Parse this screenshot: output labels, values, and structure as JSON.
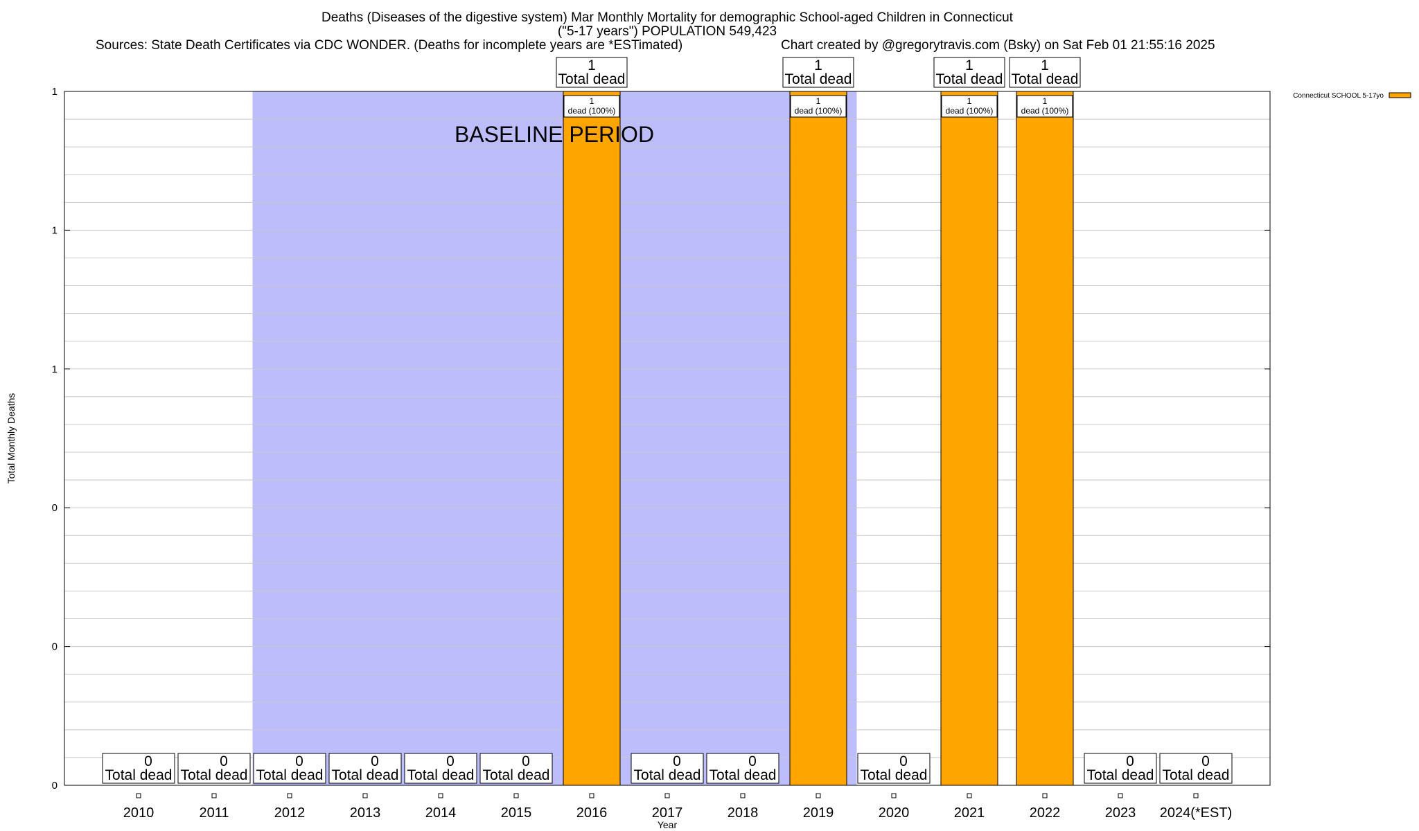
{
  "colors": {
    "bar": "#FFA500",
    "baseline_shade": "#BDBDFC",
    "grid": "#c8c8c8",
    "frame": "#000000"
  },
  "chart_data": {
    "type": "bar",
    "title": "Deaths (Diseases of the digestive system) Mar Monthly Mortality for demographic School-aged Children in Connecticut",
    "subtitle": "(\"5-17 years\") POPULATION 549,423",
    "sources": "Sources: State Death Certificates via CDC WONDER. (Deaths for incomplete years are *ESTimated)",
    "credit": "Chart created by @gregorytravis.com (Bsky) on Sat Feb 01 21:55:16 2025",
    "xlabel": "Year",
    "ylabel": "Total Monthly Deaths",
    "categories": [
      "2010",
      "2011",
      "2012",
      "2013",
      "2014",
      "2015",
      "2016",
      "2017",
      "2018",
      "2019",
      "2020",
      "2021",
      "2022",
      "2023",
      "2024(*EST)"
    ],
    "series": [
      {
        "name": "Connecticut SCHOOL 5-17yo",
        "values": [
          0,
          0,
          0,
          0,
          0,
          0,
          1,
          0,
          0,
          1,
          0,
          1,
          1,
          0,
          0
        ]
      }
    ],
    "ylim": [
      0,
      1
    ],
    "ytick_labels": [
      "0",
      "0",
      "0",
      "1",
      "1",
      "1"
    ],
    "baseline_period": {
      "label": "BASELINE PERIOD",
      "from": "2012",
      "to": "2019"
    },
    "total_label_word": "Total dead",
    "bar_label_word": "dead (100%)",
    "grid": true,
    "legend_position": "top-right"
  }
}
